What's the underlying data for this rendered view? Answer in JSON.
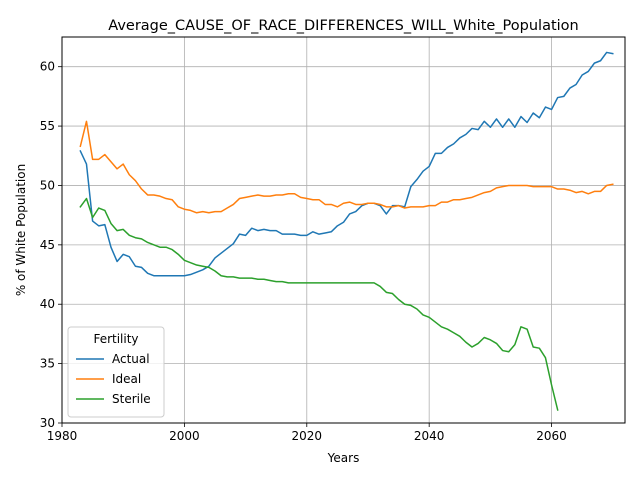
{
  "chart_data": {
    "type": "line",
    "title": "Average_CAUSE_OF_RACE_DIFFERENCES_WILL_White_Population",
    "xlabel": "Years",
    "ylabel": "% of White Population",
    "xlim": [
      1980,
      2072
    ],
    "ylim": [
      30,
      62.5
    ],
    "xticks": [
      1980,
      2000,
      2020,
      2040,
      2060
    ],
    "yticks": [
      30,
      35,
      40,
      45,
      50,
      55,
      60
    ],
    "grid": true,
    "legend": {
      "title": "Fertility",
      "placement": "lower-left"
    },
    "series": [
      {
        "name": "Actual",
        "color": "#1f77b4",
        "x": [
          1983,
          1984,
          1985,
          1986,
          1987,
          1988,
          1989,
          1990,
          1991,
          1992,
          1993,
          1994,
          1995,
          1996,
          1997,
          1998,
          1999,
          2000,
          2001,
          2002,
          2003,
          2004,
          2005,
          2006,
          2007,
          2008,
          2009,
          2010,
          2011,
          2012,
          2013,
          2014,
          2015,
          2016,
          2017,
          2018,
          2019,
          2020,
          2021,
          2022,
          2023,
          2024,
          2025,
          2026,
          2027,
          2028,
          2029,
          2030,
          2031,
          2032,
          2033,
          2034,
          2035,
          2036,
          2037,
          2038,
          2039,
          2040,
          2041,
          2042,
          2043,
          2044,
          2045,
          2046,
          2047,
          2048,
          2049,
          2050,
          2051,
          2052,
          2053,
          2054,
          2055,
          2056,
          2057,
          2058,
          2059,
          2060,
          2061,
          2062,
          2063,
          2064,
          2065,
          2066,
          2067,
          2068,
          2069,
          2070
        ],
        "values": [
          52.9,
          51.8,
          47.0,
          46.6,
          46.7,
          44.8,
          43.6,
          44.2,
          44.0,
          43.2,
          43.1,
          42.6,
          42.4,
          42.4,
          42.4,
          42.4,
          42.4,
          42.4,
          42.5,
          42.7,
          42.9,
          43.2,
          43.9,
          44.3,
          44.7,
          45.1,
          45.9,
          45.8,
          46.4,
          46.2,
          46.3,
          46.2,
          46.2,
          45.9,
          45.9,
          45.9,
          45.8,
          45.8,
          46.1,
          45.9,
          46.0,
          46.1,
          46.6,
          46.9,
          47.6,
          47.8,
          48.3,
          48.5,
          48.5,
          48.3,
          47.6,
          48.3,
          48.3,
          48.2,
          49.9,
          50.5,
          51.2,
          51.6,
          52.7,
          52.7,
          53.2,
          53.5,
          54.0,
          54.3,
          54.8,
          54.7,
          55.4,
          54.9,
          55.6,
          54.9,
          55.6,
          54.9,
          55.8,
          55.3,
          56.1,
          55.7,
          56.6,
          56.4,
          57.4,
          57.5,
          58.2,
          58.5,
          59.3,
          59.6,
          60.3,
          60.5,
          61.2,
          61.1
        ]
      },
      {
        "name": "Ideal",
        "color": "#ff7f0e",
        "x": [
          1983,
          1984,
          1985,
          1986,
          1987,
          1988,
          1989,
          1990,
          1991,
          1992,
          1993,
          1994,
          1995,
          1996,
          1997,
          1998,
          1999,
          2000,
          2001,
          2002,
          2003,
          2004,
          2005,
          2006,
          2007,
          2008,
          2009,
          2010,
          2011,
          2012,
          2013,
          2014,
          2015,
          2016,
          2017,
          2018,
          2019,
          2020,
          2021,
          2022,
          2023,
          2024,
          2025,
          2026,
          2027,
          2028,
          2029,
          2030,
          2031,
          2032,
          2033,
          2034,
          2035,
          2036,
          2037,
          2038,
          2039,
          2040,
          2041,
          2042,
          2043,
          2044,
          2045,
          2046,
          2047,
          2048,
          2049,
          2050,
          2051,
          2052,
          2053,
          2054,
          2055,
          2056,
          2057,
          2058,
          2059,
          2060,
          2061,
          2062,
          2063,
          2064,
          2065,
          2066,
          2067,
          2068,
          2069,
          2070
        ],
        "values": [
          53.3,
          55.4,
          52.2,
          52.2,
          52.6,
          52.0,
          51.4,
          51.8,
          50.9,
          50.4,
          49.7,
          49.2,
          49.2,
          49.1,
          48.9,
          48.8,
          48.2,
          48.0,
          47.9,
          47.7,
          47.8,
          47.7,
          47.8,
          47.8,
          48.1,
          48.4,
          48.9,
          49.0,
          49.1,
          49.2,
          49.1,
          49.1,
          49.2,
          49.2,
          49.3,
          49.3,
          49.0,
          48.9,
          48.8,
          48.8,
          48.4,
          48.4,
          48.2,
          48.5,
          48.6,
          48.4,
          48.4,
          48.5,
          48.5,
          48.4,
          48.2,
          48.2,
          48.3,
          48.1,
          48.2,
          48.2,
          48.2,
          48.3,
          48.3,
          48.6,
          48.6,
          48.8,
          48.8,
          48.9,
          49.0,
          49.2,
          49.4,
          49.5,
          49.8,
          49.9,
          50.0,
          50.0,
          50.0,
          50.0,
          49.9,
          49.9,
          49.9,
          49.9,
          49.7,
          49.7,
          49.6,
          49.4,
          49.5,
          49.3,
          49.5,
          49.5,
          50.0,
          50.1
        ]
      },
      {
        "name": "Sterile",
        "color": "#2ca02c",
        "x": [
          1983,
          1984,
          1985,
          1986,
          1987,
          1988,
          1989,
          1990,
          1991,
          1992,
          1993,
          1994,
          1995,
          1996,
          1997,
          1998,
          1999,
          2000,
          2001,
          2002,
          2003,
          2004,
          2005,
          2006,
          2007,
          2008,
          2009,
          2010,
          2011,
          2012,
          2013,
          2014,
          2015,
          2016,
          2017,
          2018,
          2019,
          2020,
          2021,
          2022,
          2023,
          2024,
          2025,
          2026,
          2027,
          2028,
          2029,
          2030,
          2031,
          2032,
          2033,
          2034,
          2035,
          2036,
          2037,
          2038,
          2039,
          2040,
          2041,
          2042,
          2043,
          2044,
          2045,
          2046,
          2047,
          2048,
          2049,
          2050,
          2051,
          2052,
          2053,
          2054,
          2055,
          2056,
          2057,
          2058,
          2059,
          2060,
          2061
        ],
        "values": [
          48.2,
          48.9,
          47.3,
          48.1,
          47.9,
          46.8,
          46.2,
          46.3,
          45.8,
          45.6,
          45.5,
          45.2,
          45.0,
          44.8,
          44.8,
          44.6,
          44.2,
          43.7,
          43.5,
          43.3,
          43.2,
          43.1,
          42.8,
          42.4,
          42.3,
          42.3,
          42.2,
          42.2,
          42.2,
          42.1,
          42.1,
          42.0,
          41.9,
          41.9,
          41.8,
          41.8,
          41.8,
          41.8,
          41.8,
          41.8,
          41.8,
          41.8,
          41.8,
          41.8,
          41.8,
          41.8,
          41.8,
          41.8,
          41.8,
          41.5,
          41.0,
          40.9,
          40.4,
          40.0,
          39.9,
          39.6,
          39.1,
          38.9,
          38.5,
          38.1,
          37.9,
          37.6,
          37.3,
          36.8,
          36.4,
          36.7,
          37.2,
          37.0,
          36.7,
          36.1,
          36.0,
          36.6,
          38.1,
          37.9,
          36.4,
          36.3,
          35.5,
          33.2,
          31.1
        ]
      }
    ]
  }
}
